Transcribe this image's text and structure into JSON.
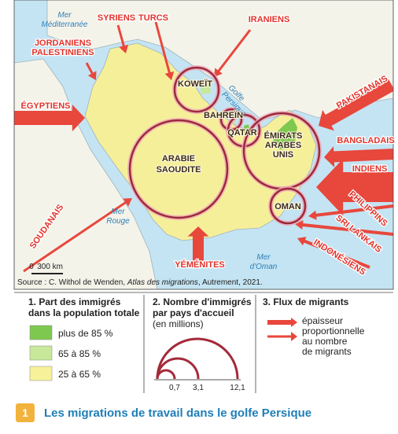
{
  "map": {
    "seas": {
      "med": [
        "Mer",
        "Méditerranée"
      ],
      "red": [
        "Mer",
        "Rouge"
      ],
      "gulf": [
        "Golfe",
        "Persique"
      ],
      "oman": [
        "Mer",
        "d'Oman"
      ]
    },
    "countries": {
      "kuwait": "KOWEÏT",
      "bahrain": "BAHREÏN",
      "qatar": "QATAR",
      "uae": [
        "ÉMIRATS",
        "ARABES",
        "UNIS"
      ],
      "saudi": [
        "ARABIE",
        "SAOUDITE"
      ],
      "oman": "OMAN"
    },
    "flows": {
      "syrians": "SYRIENS",
      "turks": "TURCS",
      "iranians": "IRANIENS",
      "jordanians": [
        "JORDANIENS",
        "PALESTINIENS"
      ],
      "egyptians": "ÉGYPTIENS",
      "pakistanis": "PAKISTANAIS",
      "bangladeshis": "BANGLADAIS",
      "indians": "INDIENS",
      "filipinos": "PHILIPPINS",
      "srilankans": "SRI LANKAIS",
      "indonesians": "INDONÉSIENS",
      "sudanese": "SOUDANAIS",
      "yemenis": "YÉMÉNITES"
    },
    "scale": {
      "start": "0",
      "end": "300 km"
    },
    "source": {
      "prefix": "Source : C. Withol de Wenden, ",
      "work": "Atlas des migrations",
      "suffix": ", Autrement, 2021."
    }
  },
  "legend": {
    "share": {
      "title": [
        "1. Part des immigrés",
        "dans la population totale"
      ],
      "items": [
        "plus de 85 %",
        "65 à 85 %",
        "25 à 65 %"
      ]
    },
    "count": {
      "title": [
        "2. Nombre d'immigrés",
        "par pays d'accueil"
      ],
      "unit": "(en millions)",
      "values": [
        "0,7",
        "3,1",
        "12,1"
      ]
    },
    "flows": {
      "title": "3. Flux de migrants",
      "text": [
        "épaisseur",
        "proportionnelle",
        "au nombre",
        "de migrants"
      ]
    }
  },
  "caption": {
    "number": "1",
    "title": "Les migrations de travail dans le golfe Persique"
  }
}
